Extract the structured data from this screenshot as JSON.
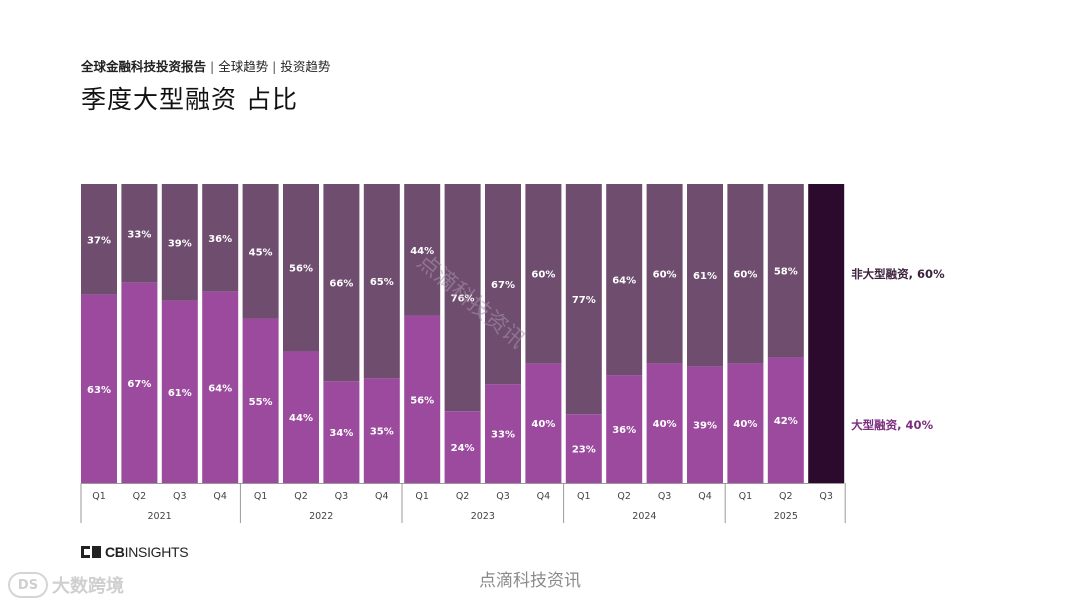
{
  "header": {
    "report": "全球金融科技投资报告",
    "sep1": " | ",
    "section": "全球趋势",
    "sep2": " | ",
    "subsection": "投资趋势",
    "title": "季度大型融资 占比"
  },
  "chart_data": {
    "type": "bar",
    "stacked": true,
    "percent": true,
    "categories": [
      "Q1",
      "Q2",
      "Q3",
      "Q4",
      "Q1",
      "Q2",
      "Q3",
      "Q4",
      "Q1",
      "Q2",
      "Q3",
      "Q4",
      "Q1",
      "Q2",
      "Q3",
      "Q4",
      "Q1",
      "Q2",
      "Q3"
    ],
    "years": [
      {
        "label": "2021",
        "start": 0,
        "end": 3
      },
      {
        "label": "2022",
        "start": 4,
        "end": 7
      },
      {
        "label": "2023",
        "start": 8,
        "end": 11
      },
      {
        "label": "2024",
        "start": 12,
        "end": 15
      },
      {
        "label": "2025",
        "start": 16,
        "end": 18
      }
    ],
    "series": [
      {
        "name": "大型融资",
        "color": "#9b4a9d",
        "values": [
          63,
          67,
          61,
          64,
          55,
          44,
          34,
          35,
          56,
          24,
          33,
          40,
          23,
          36,
          40,
          39,
          40,
          42,
          null
        ]
      },
      {
        "name": "非大型融资",
        "color": "#6e4d6e",
        "values": [
          37,
          33,
          39,
          36,
          45,
          56,
          66,
          65,
          44,
          76,
          67,
          60,
          77,
          64,
          60,
          61,
          60,
          58,
          null
        ]
      }
    ],
    "projected": {
      "index": 18,
      "color": "#2c0a2e"
    },
    "end_labels": [
      {
        "text": "非大型融资, 60%",
        "color": "#3b1f3b"
      },
      {
        "text": "大型融资, 40%",
        "color": "#7a2d7c"
      }
    ],
    "ylim": [
      0,
      100
    ],
    "grid": false,
    "label_color": "#ffffff"
  },
  "watermark": {
    "diagonal": "点滴科技资讯",
    "bottom": "点滴科技资讯"
  },
  "footer": {
    "brand_bold": "CB",
    "brand_rest": "INSIGHTS",
    "corner_icon": "DS",
    "corner_text": "大数跨境"
  }
}
